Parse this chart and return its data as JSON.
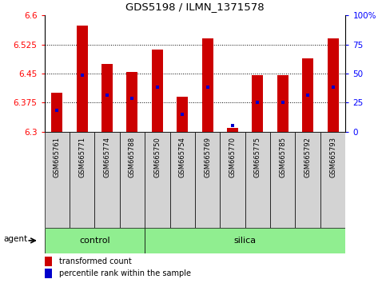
{
  "title": "GDS5198 / ILMN_1371578",
  "samples": [
    "GSM665761",
    "GSM665771",
    "GSM665774",
    "GSM665788",
    "GSM665750",
    "GSM665754",
    "GSM665769",
    "GSM665770",
    "GSM665775",
    "GSM665785",
    "GSM665792",
    "GSM665793"
  ],
  "n_control": 4,
  "n_silica": 8,
  "red_values": [
    6.4,
    6.575,
    6.475,
    6.455,
    6.513,
    6.39,
    6.54,
    6.31,
    6.445,
    6.445,
    6.49,
    6.54
  ],
  "blue_values": [
    6.355,
    6.445,
    6.395,
    6.385,
    6.415,
    6.345,
    6.415,
    6.315,
    6.375,
    6.375,
    6.395,
    6.415
  ],
  "y_min": 6.3,
  "y_max": 6.6,
  "y_ticks": [
    6.3,
    6.375,
    6.45,
    6.525,
    6.6
  ],
  "y2_ticks": [
    0,
    25,
    50,
    75,
    100
  ],
  "bar_color": "#cc0000",
  "blue_color": "#0000cc",
  "control_color": "#90ee90",
  "silica_color": "#90ee90",
  "cell_bg": "#d3d3d3",
  "legend_items": [
    "transformed count",
    "percentile rank within the sample"
  ]
}
